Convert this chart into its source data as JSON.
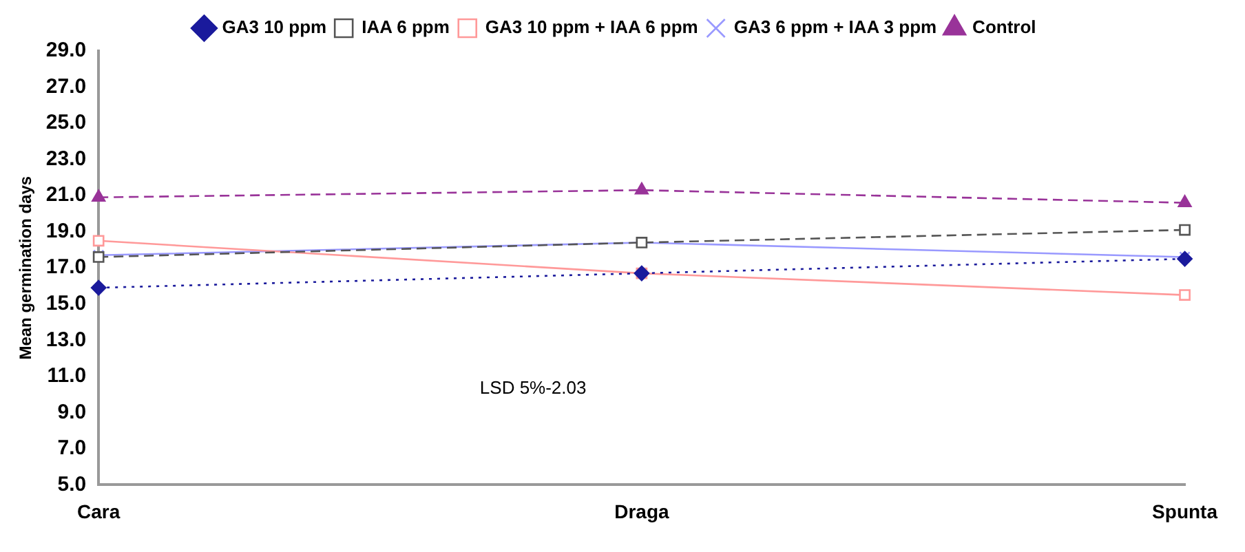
{
  "chart_data": {
    "type": "line",
    "ylabel": "Mean germination days",
    "categories": [
      "Cara",
      "Draga",
      "Spunta"
    ],
    "series": [
      {
        "name": "GA3 10 ppm",
        "color": "#1a1a9c",
        "values": [
          15.9,
          16.7,
          17.5
        ],
        "marker": "diamond",
        "line_style": "dotted"
      },
      {
        "name": "IAA 6 ppm",
        "color": "#555555",
        "values": [
          17.6,
          18.4,
          19.1
        ],
        "marker": "square",
        "line_style": "dashed"
      },
      {
        "name": "GA3 10 ppm + IAA 6 ppm",
        "color": "#ff9999",
        "values": [
          18.5,
          16.7,
          15.5
        ],
        "marker": "square",
        "line_style": "solid"
      },
      {
        "name": "GA3 6 ppm + IAA 3 ppm",
        "color": "#9999ff",
        "values": [
          17.7,
          18.4,
          17.6
        ],
        "marker": "cross",
        "line_style": "solid"
      },
      {
        "name": "Control",
        "color": "#993399",
        "values": [
          20.9,
          21.3,
          20.6
        ],
        "marker": "triangle",
        "line_style": "dashed"
      }
    ],
    "ylim": [
      5,
      29
    ],
    "yticks": [
      {
        "value": 5,
        "label": "5.0"
      },
      {
        "value": 7,
        "label": "7.0"
      },
      {
        "value": 9,
        "label": "9.0"
      },
      {
        "value": 11,
        "label": "11.0"
      },
      {
        "value": 13,
        "label": "13.0"
      },
      {
        "value": 15,
        "label": "15.0"
      },
      {
        "value": 17,
        "label": "17.0"
      },
      {
        "value": 19,
        "label": "19.0"
      },
      {
        "value": 21,
        "label": "21.0"
      },
      {
        "value": 23,
        "label": "23.0"
      },
      {
        "value": 25,
        "label": "25.0"
      },
      {
        "value": 27,
        "label": "27.0"
      },
      {
        "value": 29,
        "label": "29.0"
      }
    ],
    "grid": false,
    "legend": "top",
    "annotations": [
      "LSD 5%-2.03"
    ]
  }
}
